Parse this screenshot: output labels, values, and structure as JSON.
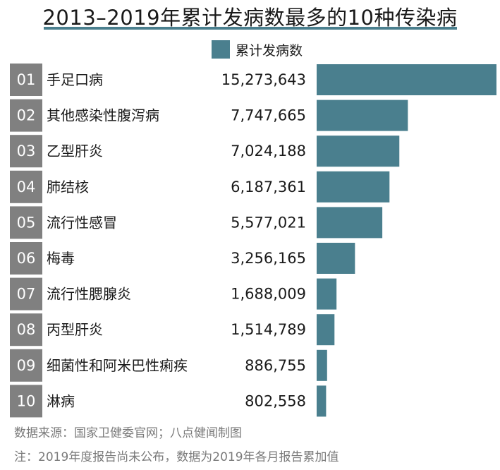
{
  "title": "2013–2019年累计发病数最多的10种传染病",
  "colors": {
    "bar": "#4a7f8e",
    "rank_box": "#808080",
    "title_underline": "#4a7f8e",
    "footer_text": "#7a7a7a"
  },
  "legend": {
    "label": "累计发病数"
  },
  "chart_data": {
    "type": "bar",
    "orientation": "horizontal",
    "series_name": "累计发病数",
    "ranks": [
      "01",
      "02",
      "03",
      "04",
      "05",
      "06",
      "07",
      "08",
      "09",
      "10"
    ],
    "categories": [
      "手足口病",
      "其他感染性腹泻病",
      "乙型肝炎",
      "肺结核",
      "流行性感冒",
      "梅毒",
      "流行性腮腺炎",
      "丙型肝炎",
      "细菌性和阿米巴性痢疾",
      "淋病"
    ],
    "values": [
      15273643,
      7747665,
      7024188,
      6187361,
      5577021,
      3256165,
      1688009,
      1514789,
      886755,
      802558
    ],
    "value_labels": [
      "15,273,643",
      "7,747,665",
      "7,024,188",
      "6,187,361",
      "5,577,021",
      "3,256,165",
      "1,688,009",
      "1,514,789",
      "886,755",
      "802,558"
    ],
    "legend_position": "top",
    "grid": false
  },
  "footer": {
    "source": "数据来源：国家卫健委官网；八点健闻制图",
    "note": "注：2019年度报告尚未公布，数据为2019年各月报告累加值"
  }
}
